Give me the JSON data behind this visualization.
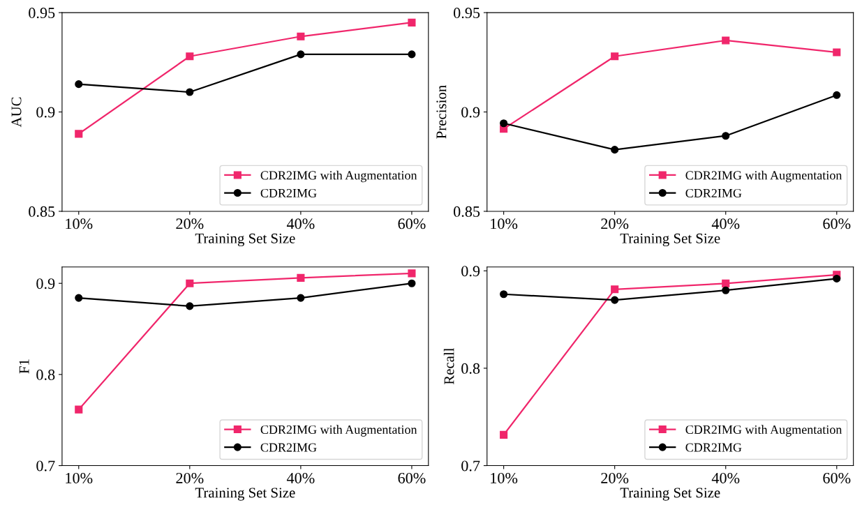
{
  "chart_data": [
    {
      "type": "line",
      "xlabel": "Training Set Size",
      "ylabel": "AUC",
      "categories": [
        "10%",
        "20%",
        "40%",
        "60%"
      ],
      "ylim": [
        0.85,
        0.95
      ],
      "yticks": [
        0.85,
        {
          "value": 0.9,
          "label": "0.9"
        },
        0.95
      ],
      "legend": "bottom right",
      "series": [
        {
          "name": "CDR2IMG with Augmentation",
          "color": "#f0266b",
          "marker": "square",
          "values": [
            0.889,
            0.928,
            0.938,
            0.945
          ]
        },
        {
          "name": "CDR2IMG",
          "color": "#000000",
          "marker": "circle",
          "values": [
            0.914,
            0.91,
            0.929,
            0.929
          ]
        }
      ]
    },
    {
      "type": "line",
      "xlabel": "Training Set Size",
      "ylabel": "Precision",
      "categories": [
        "10%",
        "20%",
        "40%",
        "60%"
      ],
      "ylim": [
        0.85,
        0.95
      ],
      "yticks": [
        0.85,
        {
          "value": 0.9,
          "label": "0.9"
        },
        0.95
      ],
      "legend": "bottom right",
      "series": [
        {
          "name": "CDR2IMG with Augmentation",
          "color": "#f0266b",
          "marker": "square",
          "values": [
            0.8915,
            0.928,
            0.936,
            0.93
          ]
        },
        {
          "name": "CDR2IMG",
          "color": "#000000",
          "marker": "circle",
          "values": [
            0.8943,
            0.881,
            0.888,
            0.9085
          ]
        }
      ]
    },
    {
      "type": "line",
      "xlabel": "Training Set Size",
      "ylabel": "F1",
      "categories": [
        "10%",
        "20%",
        "40%",
        "60%"
      ],
      "ylim": [
        0.7,
        0.918
      ],
      "yticks": [
        0.7,
        0.8,
        0.9
      ],
      "legend": "bottom right",
      "series": [
        {
          "name": "CDR2IMG with Augmentation",
          "color": "#f0266b",
          "marker": "square",
          "values": [
            0.7615,
            0.9,
            0.906,
            0.911
          ]
        },
        {
          "name": "CDR2IMG",
          "color": "#000000",
          "marker": "circle",
          "values": [
            0.884,
            0.875,
            0.884,
            0.9
          ]
        }
      ]
    },
    {
      "type": "line",
      "xlabel": "Training Set Size",
      "ylabel": "Recall",
      "categories": [
        "10%",
        "20%",
        "40%",
        "60%"
      ],
      "ylim": [
        0.7,
        0.904
      ],
      "yticks": [
        0.7,
        0.8,
        0.9
      ],
      "legend": "bottom right",
      "series": [
        {
          "name": "CDR2IMG with Augmentation",
          "color": "#f0266b",
          "marker": "square",
          "values": [
            0.7316,
            0.881,
            0.887,
            0.896
          ]
        },
        {
          "name": "CDR2IMG",
          "color": "#000000",
          "marker": "circle",
          "values": [
            0.876,
            0.87,
            0.88,
            0.892
          ]
        }
      ]
    }
  ]
}
